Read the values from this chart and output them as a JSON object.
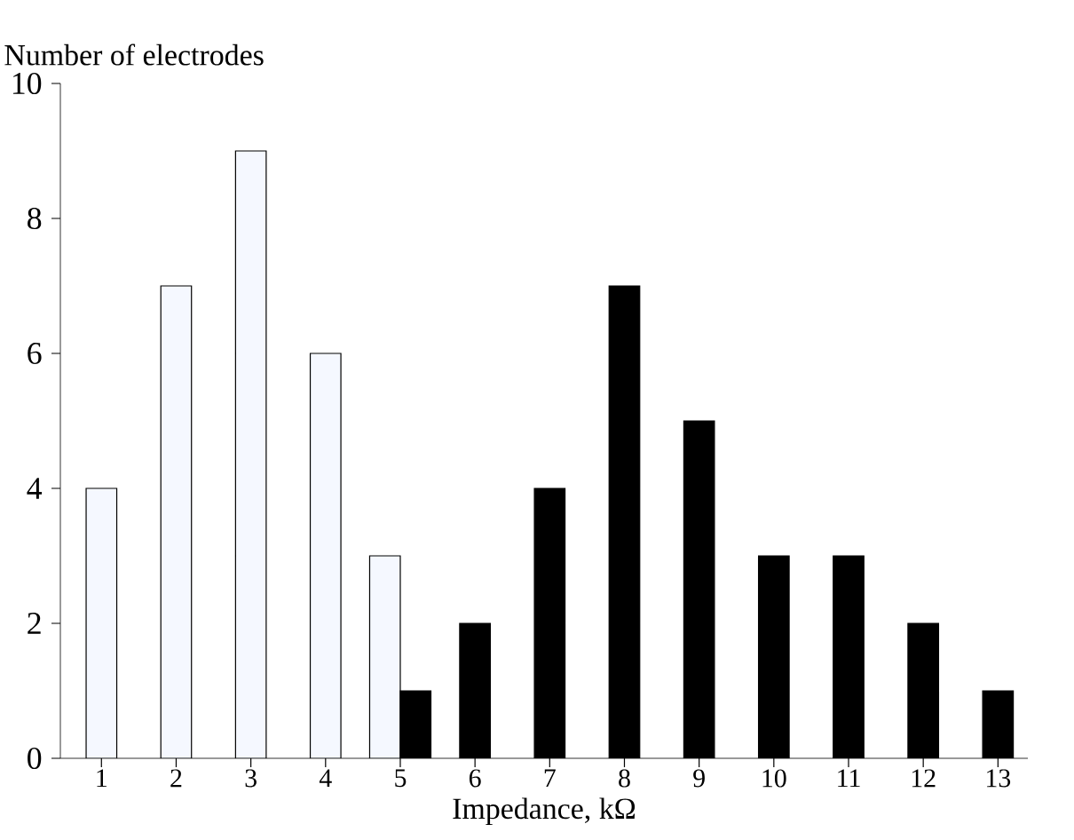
{
  "chart_data": {
    "type": "bar",
    "xlabel": "Impedance, kΩ",
    "ylabel": "Number of electrodes",
    "categories": [
      "1",
      "2",
      "3",
      "4",
      "5",
      "6",
      "7",
      "8",
      "9",
      "10",
      "11",
      "12",
      "13"
    ],
    "series": [
      {
        "color": "#f5f8ff",
        "values": [
          4,
          7,
          9,
          6,
          3,
          null,
          null,
          null,
          null,
          null,
          null,
          null,
          null
        ]
      },
      {
        "color": "#000000",
        "values": [
          null,
          null,
          null,
          null,
          1,
          2,
          4,
          7,
          5,
          3,
          3,
          2,
          1
        ]
      }
    ],
    "ylim": [
      0,
      10
    ],
    "yticks": [
      0,
      2,
      4,
      6,
      8,
      10
    ],
    "grid": false
  }
}
